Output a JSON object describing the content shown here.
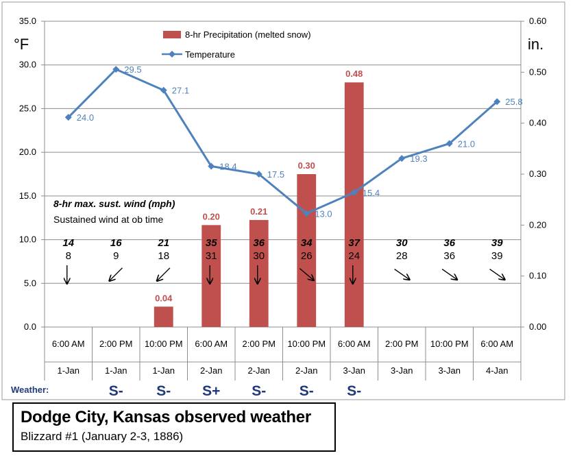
{
  "chart_data": {
    "type": "bar+line",
    "left_unit": "°F",
    "right_unit": "in.",
    "left_axis": {
      "min": 0,
      "max": 35,
      "step": 5,
      "tick_labels": [
        "0.0",
        "5.0",
        "10.0",
        "15.0",
        "20.0",
        "25.0",
        "30.0",
        "35.0"
      ]
    },
    "right_axis": {
      "min": 0,
      "max": 0.6,
      "step": 0.1,
      "tick_labels": [
        "0.00",
        "0.10",
        "0.20",
        "0.30",
        "0.40",
        "0.50",
        "0.60"
      ]
    },
    "grid": true,
    "legend_position": "top-center",
    "times": [
      "6:00 AM",
      "2:00 PM",
      "10:00 PM",
      "6:00 AM",
      "2:00 PM",
      "10:00 PM",
      "6:00 AM",
      "2:00 PM",
      "10:00 PM",
      "6:00 AM"
    ],
    "dates": [
      "1-Jan",
      "1-Jan",
      "1-Jan",
      "2-Jan",
      "2-Jan",
      "2-Jan",
      "3-Jan",
      "3-Jan",
      "3-Jan",
      "4-Jan"
    ],
    "series": [
      {
        "name": "8-hr Precipitation (melted snow)",
        "kind": "bar",
        "axis": "right",
        "color": "#c0504d",
        "values": [
          null,
          null,
          0.04,
          0.2,
          0.21,
          0.3,
          0.48,
          null,
          null,
          null
        ],
        "labels": [
          "",
          "",
          "0.04",
          "0.20",
          "0.21",
          "0.30",
          "0.48",
          "",
          "",
          ""
        ]
      },
      {
        "name": "Temperature",
        "kind": "line",
        "axis": "left",
        "color": "#4f81bd",
        "values": [
          24.0,
          29.5,
          27.1,
          18.4,
          17.5,
          13.0,
          15.4,
          19.3,
          21.0,
          25.8
        ],
        "labels": [
          "24.0",
          "29.5",
          "27.1",
          "18.4",
          "17.5",
          "13.0",
          "15.4",
          "19.3",
          "21.0",
          "25.8"
        ]
      }
    ],
    "wind_legend": {
      "line1": "8-hr max. sust. wind (mph)",
      "line2": "Sustained wind at ob time"
    },
    "wind_max": [
      "14",
      "16",
      "21",
      "35",
      "36",
      "34",
      "37",
      "30",
      "36",
      "39"
    ],
    "wind_obs": [
      "8",
      "9",
      "18",
      "31",
      "30",
      "26",
      "24",
      "28",
      "36",
      "39"
    ],
    "wind_arrow_angle_deg": [
      90,
      135,
      135,
      90,
      90,
      40,
      90,
      35,
      35,
      35
    ],
    "weather_label": "Weather:",
    "weather": [
      "",
      "S-",
      "S-",
      "S+",
      "S-",
      "S-",
      "S-",
      "",
      "",
      ""
    ]
  },
  "caption": {
    "title": "Dodge City, Kansas observed weather",
    "subtitle": "Blizzard #1 (January 2-3, 1886)"
  }
}
